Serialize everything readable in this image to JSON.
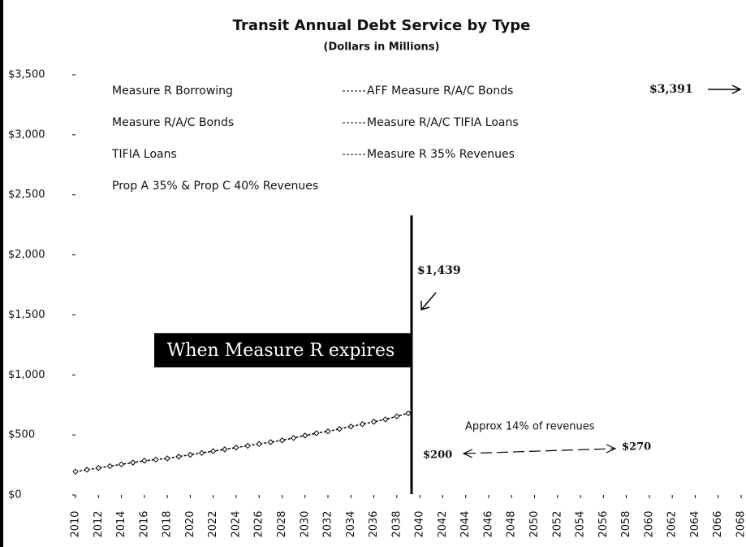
{
  "chart_data": {
    "type": "line",
    "title": "Transit Annual Debt Service by Type",
    "subtitle": "(Dollars in Millions)",
    "x": [
      2010,
      2011,
      2012,
      2013,
      2014,
      2015,
      2016,
      2017,
      2018,
      2019,
      2020,
      2021,
      2022,
      2023,
      2024,
      2025,
      2026,
      2027,
      2028,
      2029,
      2030,
      2031,
      2032,
      2033,
      2034,
      2035,
      2036,
      2037,
      2038,
      2039
    ],
    "series": [
      {
        "name": "Measure R Borrowing",
        "color": "#000000",
        "values": [
          null,
          null,
          null,
          null,
          null,
          null,
          null,
          null,
          null,
          null,
          null,
          null,
          null,
          null,
          null,
          null,
          null,
          null,
          null,
          null,
          null,
          null,
          null,
          null,
          null,
          null,
          null,
          null,
          null,
          null
        ]
      },
      {
        "name": "AFF Measure R/A/C Bonds",
        "color": "#000000",
        "values": [
          null,
          null,
          null,
          null,
          null,
          null,
          null,
          null,
          null,
          null,
          null,
          null,
          null,
          null,
          null,
          null,
          null,
          null,
          null,
          null,
          null,
          null,
          null,
          null,
          null,
          null,
          null,
          null,
          null,
          null
        ]
      },
      {
        "name": "Measure R/A/C Bonds",
        "color": "#000000",
        "values": [
          null,
          null,
          null,
          null,
          null,
          null,
          null,
          null,
          null,
          null,
          null,
          null,
          null,
          null,
          null,
          null,
          null,
          null,
          null,
          null,
          null,
          null,
          null,
          null,
          null,
          null,
          null,
          null,
          null,
          null
        ]
      },
      {
        "name": "Measure R/A/C TIFIA Loans",
        "color": "#000000",
        "values": [
          null,
          null,
          null,
          null,
          null,
          null,
          null,
          null,
          null,
          null,
          null,
          null,
          null,
          null,
          null,
          null,
          null,
          null,
          null,
          null,
          null,
          null,
          null,
          null,
          null,
          null,
          null,
          null,
          null,
          null
        ]
      },
      {
        "name": "TIFIA Loans",
        "color": "#000000",
        "values": [
          null,
          null,
          null,
          null,
          null,
          null,
          null,
          null,
          null,
          null,
          null,
          null,
          null,
          null,
          null,
          null,
          null,
          null,
          null,
          null,
          null,
          null,
          null,
          null,
          null,
          null,
          null,
          null,
          null,
          null
        ]
      },
      {
        "name": "Measure R 35% Revenues",
        "color": "#000000",
        "values": [
          195,
          210,
          225,
          240,
          255,
          270,
          285,
          295,
          305,
          320,
          335,
          350,
          365,
          380,
          395,
          410,
          425,
          440,
          455,
          475,
          495,
          515,
          530,
          550,
          570,
          590,
          610,
          630,
          655,
          680
        ]
      },
      {
        "name": "Prop A 35% & Prop C 40% Revenues",
        "color": "#000000",
        "values": [
          null,
          null,
          null,
          null,
          null,
          null,
          null,
          null,
          null,
          null,
          null,
          null,
          null,
          null,
          null,
          null,
          null,
          null,
          null,
          null,
          null,
          null,
          null,
          null,
          null,
          null,
          null,
          null,
          null,
          null
        ]
      }
    ],
    "xlim": [
      2010,
      2068
    ],
    "xticks": [
      2010,
      2012,
      2014,
      2016,
      2018,
      2020,
      2022,
      2024,
      2026,
      2028,
      2030,
      2032,
      2034,
      2036,
      2038,
      2040,
      2042,
      2044,
      2046,
      2048,
      2050,
      2052,
      2054,
      2056,
      2058,
      2060,
      2062,
      2064,
      2066,
      2068
    ],
    "ylim": [
      0,
      3500
    ],
    "yticks": [
      {
        "value": 0,
        "label": "$0"
      },
      {
        "value": 500,
        "label": "$500"
      },
      {
        "value": 1000,
        "label": "$1,000"
      },
      {
        "value": 1500,
        "label": "$1,500"
      },
      {
        "value": 2000,
        "label": "$2,000"
      },
      {
        "value": 2500,
        "label": "$2,500"
      },
      {
        "value": 3000,
        "label": "$3,000"
      },
      {
        "value": 3500,
        "label": "$3,500"
      }
    ],
    "annotations": [
      "$3,391",
      "$1,439",
      "When Measure R expires",
      "Approx 14% of revenues",
      "$200",
      "$270"
    ]
  }
}
